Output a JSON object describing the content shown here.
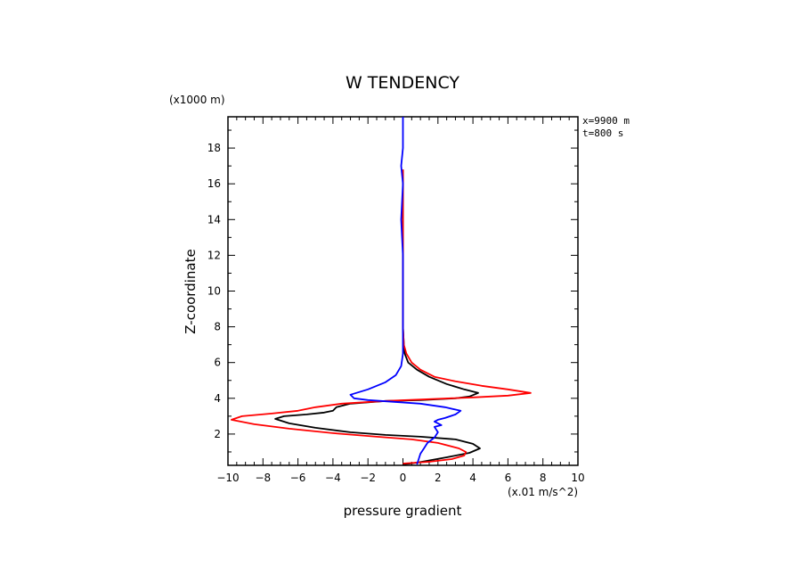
{
  "chart_data": {
    "type": "line",
    "title": "W TENDENCY",
    "xlabel": "pressure gradient",
    "ylabel": "Z-coordinate",
    "x_units": "(x.01 m/s^2)",
    "y_units": "(x1000 m)",
    "annotations": [
      "x=9900 m",
      "t=800 s"
    ],
    "xlim": [
      -10,
      10
    ],
    "ylim": [
      0.25,
      19.75
    ],
    "xticks": [
      -10,
      -8,
      -6,
      -4,
      -2,
      0,
      2,
      4,
      6,
      8,
      10
    ],
    "yticks": [
      2,
      4,
      6,
      8,
      10,
      12,
      14,
      16,
      18
    ],
    "grid": false,
    "series": [
      {
        "color": "#000000",
        "points": [
          [
            0.0,
            0.3
          ],
          [
            0.8,
            0.4
          ],
          [
            2.5,
            0.7
          ],
          [
            3.8,
            0.95
          ],
          [
            4.4,
            1.2
          ],
          [
            4.0,
            1.45
          ],
          [
            3.0,
            1.7
          ],
          [
            1.0,
            1.85
          ],
          [
            -1.0,
            1.95
          ],
          [
            -3.0,
            2.1
          ],
          [
            -5.0,
            2.35
          ],
          [
            -6.5,
            2.6
          ],
          [
            -7.3,
            2.85
          ],
          [
            -6.8,
            3.0
          ],
          [
            -5.5,
            3.1
          ],
          [
            -4.5,
            3.2
          ],
          [
            -4.0,
            3.3
          ],
          [
            -3.8,
            3.5
          ],
          [
            -3.0,
            3.7
          ],
          [
            -1.0,
            3.85
          ],
          [
            1.0,
            3.9
          ],
          [
            3.0,
            4.0
          ],
          [
            3.8,
            4.1
          ],
          [
            4.3,
            4.3
          ],
          [
            3.5,
            4.5
          ],
          [
            2.5,
            4.8
          ],
          [
            1.5,
            5.2
          ],
          [
            0.8,
            5.6
          ],
          [
            0.3,
            6.0
          ],
          [
            0.1,
            6.5
          ],
          [
            0.05,
            7.0
          ],
          [
            0.0,
            8.0
          ],
          [
            0.0,
            10.0
          ],
          [
            0.0,
            12.0
          ],
          [
            0.0,
            14.0
          ],
          [
            0.0,
            16.0
          ],
          [
            0.0,
            16.8
          ]
        ]
      },
      {
        "color": "#ff0000",
        "points": [
          [
            0.0,
            0.35
          ],
          [
            1.5,
            0.45
          ],
          [
            2.8,
            0.6
          ],
          [
            3.5,
            0.8
          ],
          [
            3.6,
            1.0
          ],
          [
            3.2,
            1.2
          ],
          [
            2.0,
            1.5
          ],
          [
            0.5,
            1.7
          ],
          [
            -1.5,
            1.85
          ],
          [
            -4.0,
            2.05
          ],
          [
            -6.5,
            2.3
          ],
          [
            -8.5,
            2.55
          ],
          [
            -9.8,
            2.8
          ],
          [
            -9.2,
            3.0
          ],
          [
            -7.5,
            3.15
          ],
          [
            -6.0,
            3.3
          ],
          [
            -5.0,
            3.5
          ],
          [
            -3.5,
            3.7
          ],
          [
            -1.0,
            3.85
          ],
          [
            1.5,
            3.95
          ],
          [
            4.0,
            4.05
          ],
          [
            6.0,
            4.15
          ],
          [
            7.3,
            4.3
          ],
          [
            6.0,
            4.5
          ],
          [
            4.5,
            4.7
          ],
          [
            3.0,
            4.95
          ],
          [
            1.8,
            5.2
          ],
          [
            1.0,
            5.6
          ],
          [
            0.5,
            6.0
          ],
          [
            0.2,
            6.5
          ],
          [
            0.05,
            7.0
          ],
          [
            0.0,
            8.0
          ],
          [
            0.0,
            10.0
          ],
          [
            0.0,
            12.0
          ],
          [
            0.0,
            14.0
          ],
          [
            0.0,
            16.0
          ],
          [
            0.0,
            16.8
          ]
        ]
      },
      {
        "color": "#0000ff",
        "points": [
          [
            0.8,
            0.3
          ],
          [
            0.9,
            0.6
          ],
          [
            1.0,
            0.9
          ],
          [
            1.2,
            1.2
          ],
          [
            1.4,
            1.5
          ],
          [
            1.8,
            1.8
          ],
          [
            2.0,
            2.1
          ],
          [
            1.8,
            2.4
          ],
          [
            2.2,
            2.5
          ],
          [
            1.8,
            2.7
          ],
          [
            2.0,
            2.8
          ],
          [
            2.4,
            2.9
          ],
          [
            3.0,
            3.1
          ],
          [
            3.3,
            3.3
          ],
          [
            2.4,
            3.5
          ],
          [
            1.0,
            3.7
          ],
          [
            -0.5,
            3.8
          ],
          [
            -2.0,
            3.9
          ],
          [
            -2.8,
            4.0
          ],
          [
            -3.0,
            4.2
          ],
          [
            -2.0,
            4.5
          ],
          [
            -1.0,
            4.9
          ],
          [
            -0.4,
            5.3
          ],
          [
            -0.1,
            5.8
          ],
          [
            0.0,
            6.5
          ],
          [
            0.0,
            8.0
          ],
          [
            0.0,
            10.0
          ],
          [
            0.0,
            12.0
          ],
          [
            -0.1,
            14.0
          ],
          [
            0.0,
            16.0
          ],
          [
            -0.1,
            17.0
          ],
          [
            0.0,
            18.0
          ],
          [
            0.0,
            19.0
          ],
          [
            0.0,
            19.75
          ]
        ]
      }
    ]
  }
}
